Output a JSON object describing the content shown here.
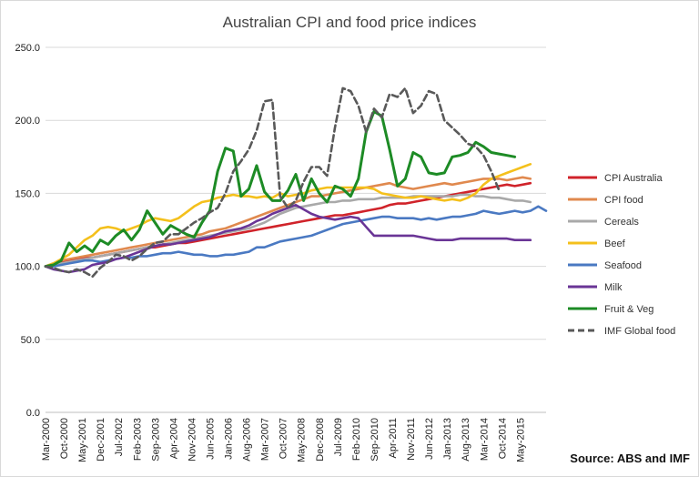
{
  "chart_data": {
    "type": "line",
    "title": "Australian CPI and food price indices",
    "source": "Source: ABS and IMF",
    "ylim": [
      0,
      250
    ],
    "y_ticks": [
      "0.0",
      "50.0",
      "100.0",
      "150.0",
      "200.0",
      "250.0"
    ],
    "grid": "horizontal",
    "legend_position": "right",
    "x_tick_labels": [
      "Mar-2000",
      "Oct-2000",
      "May-2001",
      "Dec-2001",
      "Jul-2002",
      "Feb-2003",
      "Sep-2003",
      "Apr-2004",
      "Nov-2004",
      "Jun-2005",
      "Jan-2006",
      "Aug-2006",
      "Mar-2007",
      "Oct-2007",
      "May-2008",
      "Dec-2008",
      "Jul-2009",
      "Feb-2010",
      "Sep-2010",
      "Apr-2011",
      "Nov-2011",
      "Jun-2012",
      "Jan-2013",
      "Aug-2013",
      "Mar-2014",
      "Oct-2014",
      "May-2015"
    ],
    "x_start": "Mar-2000",
    "x_step_months": 3,
    "series": [
      {
        "name": "CPI Australia",
        "color": "#d0232a",
        "dash": false,
        "values": [
          100,
          101,
          103,
          104,
          105,
          106,
          106,
          107,
          108,
          109,
          110,
          111,
          112,
          113,
          113,
          114,
          115,
          116,
          116,
          117,
          118,
          119,
          120,
          121,
          122,
          123,
          124,
          125,
          126,
          127,
          128,
          129,
          130,
          131,
          132,
          133,
          134,
          135,
          135,
          136,
          137,
          138,
          139,
          140,
          142,
          143,
          143,
          144,
          145,
          146,
          147,
          148,
          149,
          150,
          151,
          152,
          153,
          154,
          155,
          156,
          155,
          156,
          157
        ]
      },
      {
        "name": "CPI food",
        "color": "#e0894e",
        "dash": false,
        "values": [
          100,
          102,
          104,
          105,
          106,
          107,
          108,
          109,
          110,
          111,
          112,
          113,
          114,
          115,
          116,
          117,
          118,
          119,
          120,
          121,
          122,
          124,
          125,
          126,
          128,
          130,
          132,
          134,
          136,
          138,
          140,
          142,
          144,
          146,
          148,
          148,
          149,
          150,
          151,
          152,
          153,
          154,
          155,
          156,
          157,
          155,
          154,
          153,
          154,
          155,
          156,
          157,
          156,
          157,
          158,
          159,
          160,
          160,
          160,
          159,
          160,
          161,
          160
        ]
      },
      {
        "name": "Cereals",
        "color": "#a9a9a9",
        "dash": false,
        "values": [
          100,
          101,
          102,
          103,
          104,
          105,
          106,
          107,
          108,
          109,
          110,
          111,
          112,
          113,
          114,
          115,
          116,
          117,
          118,
          119,
          120,
          121,
          122,
          123,
          124,
          125,
          126,
          128,
          130,
          133,
          136,
          138,
          140,
          141,
          142,
          143,
          144,
          144,
          145,
          145,
          146,
          146,
          146,
          147,
          147,
          147,
          147,
          148,
          148,
          148,
          148,
          148,
          148,
          149,
          149,
          148,
          148,
          147,
          147,
          146,
          145,
          145,
          144
        ]
      },
      {
        "name": "Beef",
        "color": "#f4c01c",
        "dash": false,
        "values": [
          100,
          102,
          105,
          108,
          113,
          118,
          121,
          126,
          127,
          126,
          124,
          126,
          128,
          131,
          133,
          132,
          131,
          133,
          137,
          141,
          144,
          145,
          147,
          148,
          149,
          148,
          148,
          147,
          148,
          147,
          150,
          148,
          149,
          150,
          152,
          153,
          154,
          154,
          154,
          154,
          154,
          154,
          153,
          150,
          149,
          148,
          147,
          147,
          148,
          147,
          146,
          145,
          146,
          145,
          147,
          150,
          156,
          160,
          162,
          164,
          166,
          168,
          170
        ]
      },
      {
        "name": "Seafood",
        "color": "#4a79c2",
        "dash": false,
        "values": [
          100,
          100,
          101,
          102,
          103,
          104,
          104,
          103,
          104,
          105,
          106,
          106,
          107,
          107,
          108,
          109,
          109,
          110,
          109,
          108,
          108,
          107,
          107,
          108,
          108,
          109,
          110,
          113,
          113,
          115,
          117,
          118,
          119,
          120,
          121,
          123,
          125,
          127,
          129,
          130,
          131,
          132,
          133,
          134,
          134,
          133,
          133,
          133,
          132,
          133,
          132,
          133,
          134,
          134,
          135,
          136,
          138,
          137,
          136,
          137,
          138,
          137,
          138,
          141,
          138
        ]
      },
      {
        "name": "Milk",
        "color": "#6a3596",
        "dash": false,
        "values": [
          100,
          98,
          97,
          96,
          97,
          98,
          101,
          102,
          103,
          105,
          106,
          108,
          110,
          112,
          114,
          115,
          115,
          116,
          117,
          118,
          119,
          120,
          122,
          124,
          125,
          126,
          128,
          131,
          133,
          136,
          138,
          140,
          142,
          139,
          136,
          134,
          133,
          132,
          133,
          134,
          133,
          127,
          121,
          121,
          121,
          121,
          121,
          121,
          120,
          119,
          118,
          118,
          118,
          119,
          119,
          119,
          119,
          119,
          119,
          119,
          118,
          118,
          118
        ]
      },
      {
        "name": "Fruit & Veg",
        "color": "#1d8b25",
        "dash": false,
        "values": [
          100,
          101,
          104,
          116,
          110,
          114,
          110,
          118,
          115,
          121,
          125,
          118,
          125,
          138,
          130,
          122,
          128,
          125,
          122,
          120,
          130,
          138,
          165,
          181,
          179,
          148,
          153,
          169,
          151,
          145,
          145,
          152,
          163,
          145,
          160,
          150,
          144,
          155,
          153,
          148,
          160,
          192,
          206,
          203,
          180,
          155,
          160,
          178,
          175,
          164,
          163,
          164,
          175,
          176,
          178,
          185,
          182,
          178,
          177,
          176,
          175
        ]
      },
      {
        "name": "IMF Global food",
        "color": "#595959",
        "dash": true,
        "values": [
          100,
          99,
          97,
          96,
          98,
          96,
          93,
          99,
          103,
          108,
          107,
          104,
          107,
          112,
          116,
          117,
          122,
          122,
          126,
          130,
          133,
          137,
          140,
          150,
          165,
          172,
          180,
          193,
          213,
          214,
          148,
          140,
          145,
          158,
          168,
          168,
          162,
          195,
          222,
          220,
          210,
          192,
          208,
          202,
          218,
          216,
          222,
          205,
          210,
          220,
          218,
          200,
          195,
          190,
          184,
          182,
          176,
          165,
          152
        ]
      }
    ]
  }
}
